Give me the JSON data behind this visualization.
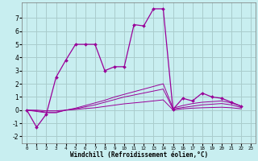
{
  "xlabel": "Windchill (Refroidissement éolien,°C)",
  "background_color": "#c8eef0",
  "grid_color": "#aacccc",
  "line_color": "#990099",
  "xlim": [
    -0.5,
    23.5
  ],
  "ylim": [
    -2.5,
    8.2
  ],
  "xticks": [
    0,
    1,
    2,
    3,
    4,
    5,
    6,
    7,
    8,
    9,
    10,
    11,
    12,
    13,
    14,
    15,
    16,
    17,
    18,
    19,
    20,
    21,
    22,
    23
  ],
  "yticks": [
    -2,
    -1,
    0,
    1,
    2,
    3,
    4,
    5,
    6,
    7
  ],
  "series": [
    [
      0,
      -1.3,
      -0.3,
      2.5,
      3.8,
      5.0,
      5.0,
      5.0,
      3.0,
      3.3,
      3.3,
      6.5,
      6.4,
      7.7,
      7.7,
      0.05,
      0.9,
      0.7,
      1.3,
      1.0,
      0.9,
      0.6,
      0.3
    ],
    [
      0,
      -0.1,
      -0.2,
      -0.2,
      0.0,
      0.15,
      0.35,
      0.55,
      0.75,
      1.0,
      1.2,
      1.4,
      1.6,
      1.8,
      2.0,
      0.15,
      0.35,
      0.5,
      0.6,
      0.65,
      0.7,
      0.55,
      0.3
    ],
    [
      0,
      -0.05,
      -0.15,
      -0.15,
      0.0,
      0.1,
      0.25,
      0.4,
      0.6,
      0.8,
      1.0,
      1.15,
      1.3,
      1.45,
      1.6,
      0.08,
      0.2,
      0.3,
      0.4,
      0.45,
      0.5,
      0.4,
      0.2
    ],
    [
      0,
      0,
      -0.05,
      -0.05,
      0.0,
      0.05,
      0.12,
      0.18,
      0.28,
      0.38,
      0.48,
      0.55,
      0.62,
      0.7,
      0.78,
      0.02,
      0.1,
      0.15,
      0.18,
      0.2,
      0.22,
      0.18,
      0.1
    ]
  ]
}
